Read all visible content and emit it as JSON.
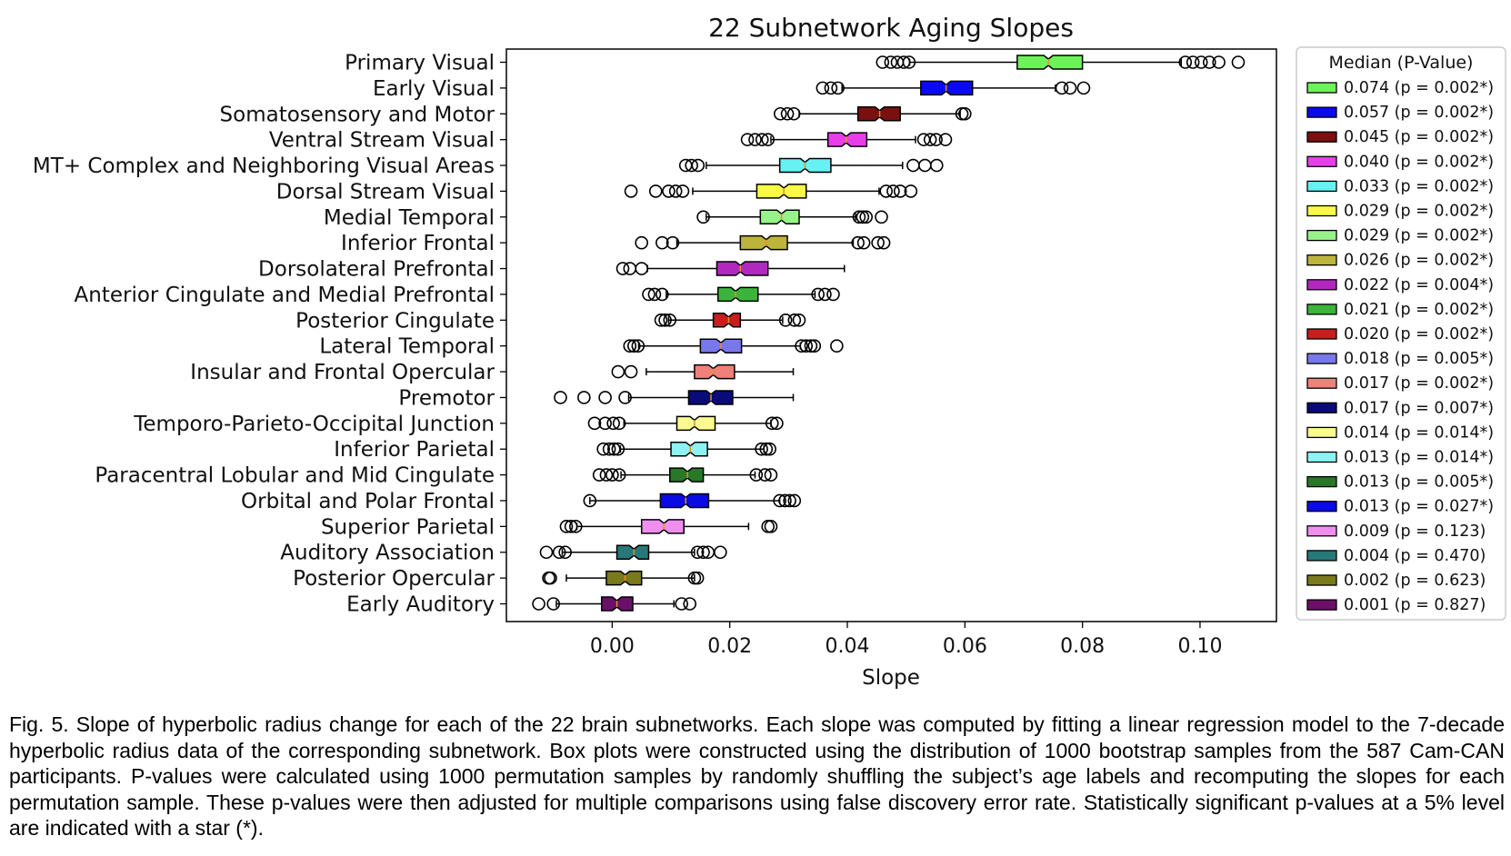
{
  "chart_data": {
    "type": "boxplot",
    "title": "22 Subnetwork Aging Slopes",
    "xlabel": "Slope",
    "ylabel": "",
    "xlim": [
      -0.018,
      0.113
    ],
    "xticks": [
      0.0,
      0.02,
      0.04,
      0.06,
      0.08,
      0.1
    ],
    "xtick_labels": [
      "0.00",
      "0.02",
      "0.04",
      "0.06",
      "0.08",
      "0.10"
    ],
    "legend_title": "Median (P-Value)",
    "legend_position": "right",
    "series": [
      {
        "name": "Primary Visual",
        "legend": "0.074 (p = 0.002*)",
        "color": "#6ef25a",
        "wmin": 0.0506,
        "q1": 0.0689,
        "med": 0.0742,
        "q3": 0.08,
        "wmax": 0.0968,
        "outliers": [
          0.046,
          0.0474,
          0.0485,
          0.0496,
          0.0505,
          0.0975,
          0.0988,
          0.1002,
          0.1016,
          0.1032,
          0.1065
        ]
      },
      {
        "name": "Early Visual",
        "legend": "0.057 (p = 0.002*)",
        "color": "#0a0af2",
        "wmin": 0.0391,
        "q1": 0.0525,
        "med": 0.0568,
        "q3": 0.0613,
        "wmax": 0.0754,
        "outliers": [
          0.0358,
          0.0372,
          0.0384,
          0.0765,
          0.0779,
          0.0802
        ]
      },
      {
        "name": "Somatosensory and Motor",
        "legend": "0.045 (p = 0.002*)",
        "color": "#7a1010",
        "wmin": 0.0318,
        "q1": 0.0418,
        "med": 0.0455,
        "q3": 0.049,
        "wmax": 0.0592,
        "outliers": [
          0.0286,
          0.0298,
          0.0309,
          0.0595,
          0.06
        ]
      },
      {
        "name": "Ventral Stream Visual",
        "legend": "0.040 (p = 0.002*)",
        "color": "#e83ee8",
        "wmin": 0.027,
        "q1": 0.0367,
        "med": 0.0398,
        "q3": 0.0433,
        "wmax": 0.0516,
        "outliers": [
          0.023,
          0.0243,
          0.0255,
          0.0265,
          0.053,
          0.0541,
          0.0551,
          0.0567
        ]
      },
      {
        "name": "MT+ Complex and Neighboring Visual Areas",
        "legend": "0.033 (p = 0.002*)",
        "color": "#66f2f2",
        "wmin": 0.016,
        "q1": 0.0285,
        "med": 0.0328,
        "q3": 0.0372,
        "wmax": 0.0494,
        "outliers": [
          0.0125,
          0.0135,
          0.0146,
          0.0512,
          0.0532,
          0.0552
        ]
      },
      {
        "name": "Dorsal Stream Visual",
        "legend": "0.029 (p = 0.002*)",
        "color": "#fafa46",
        "wmin": 0.0137,
        "q1": 0.0246,
        "med": 0.0292,
        "q3": 0.033,
        "wmax": 0.0454,
        "outliers": [
          0.0032,
          0.0074,
          0.0096,
          0.0108,
          0.012,
          0.0466,
          0.0478,
          0.049,
          0.0508
        ]
      },
      {
        "name": "Medial Temporal",
        "legend": "0.029 (p = 0.002*)",
        "color": "#98f28a",
        "wmin": 0.016,
        "q1": 0.0252,
        "med": 0.0288,
        "q3": 0.0318,
        "wmax": 0.0414,
        "outliers": [
          0.0155,
          0.042,
          0.0426,
          0.0432,
          0.0458
        ]
      },
      {
        "name": "Inferior Frontal",
        "legend": "0.026 (p = 0.002*)",
        "color": "#bdb43c",
        "wmin": 0.011,
        "q1": 0.0218,
        "med": 0.0262,
        "q3": 0.0298,
        "wmax": 0.041,
        "outliers": [
          0.005,
          0.0085,
          0.0103,
          0.0418,
          0.0428,
          0.0452,
          0.0462
        ]
      },
      {
        "name": "Dorsolateral Prefrontal",
        "legend": "0.022 (p = 0.004*)",
        "color": "#b228be",
        "wmin": 0.006,
        "q1": 0.0178,
        "med": 0.0218,
        "q3": 0.0265,
        "wmax": 0.0395,
        "outliers": [
          0.0018,
          0.003,
          0.005
        ]
      },
      {
        "name": "Anterior Cingulate and Medial Prefrontal",
        "legend": "0.021 (p = 0.002*)",
        "color": "#3cb43c",
        "wmin": 0.0092,
        "q1": 0.018,
        "med": 0.021,
        "q3": 0.0248,
        "wmax": 0.0345,
        "outliers": [
          0.0062,
          0.0072,
          0.0085,
          0.035,
          0.0362,
          0.0376
        ]
      },
      {
        "name": "Posterior Cingulate",
        "legend": "0.020 (p = 0.002*)",
        "color": "#c81e1e",
        "wmin": 0.0096,
        "q1": 0.0172,
        "med": 0.0198,
        "q3": 0.0218,
        "wmax": 0.029,
        "outliers": [
          0.0083,
          0.009,
          0.0098,
          0.0295,
          0.031,
          0.0318
        ]
      },
      {
        "name": "Lateral Temporal",
        "legend": "0.018 (p = 0.005*)",
        "color": "#7878ea",
        "wmin": 0.0045,
        "q1": 0.015,
        "med": 0.0185,
        "q3": 0.022,
        "wmax": 0.032,
        "outliers": [
          0.003,
          0.0037,
          0.0044,
          0.0322,
          0.033,
          0.0338,
          0.0344,
          0.0382
        ]
      },
      {
        "name": "Insular and Frontal Opercular",
        "legend": "0.017 (p = 0.002*)",
        "color": "#f0807a",
        "wmin": 0.0058,
        "q1": 0.014,
        "med": 0.0172,
        "q3": 0.0208,
        "wmax": 0.0308,
        "outliers": [
          0.001,
          0.0032
        ]
      },
      {
        "name": "Premotor",
        "legend": "0.017 (p = 0.007*)",
        "color": "#0a0a78",
        "wmin": 0.0028,
        "q1": 0.013,
        "med": 0.0168,
        "q3": 0.0205,
        "wmax": 0.0308,
        "outliers": [
          -0.0088,
          -0.0048,
          -0.0012,
          0.0022
        ]
      },
      {
        "name": "Temporo-Parieto-Occipital Junction",
        "legend": "0.014 (p = 0.014*)",
        "color": "#fafa8e",
        "wmin": 0.002,
        "q1": 0.011,
        "med": 0.014,
        "q3": 0.0175,
        "wmax": 0.027,
        "outliers": [
          -0.003,
          -0.0012,
          0.0002,
          0.0012,
          0.0272,
          0.028
        ]
      },
      {
        "name": "Inferior Parietal",
        "legend": "0.013 (p = 0.014*)",
        "color": "#8ef2f2",
        "wmin": 0.0014,
        "q1": 0.01,
        "med": 0.0133,
        "q3": 0.0162,
        "wmax": 0.0258,
        "outliers": [
          -0.0015,
          -0.0005,
          0.0003,
          0.001,
          0.0254,
          0.0262,
          0.0268
        ]
      },
      {
        "name": "Paracentral Lobular and Mid Cingulate",
        "legend": "0.013 (p = 0.005*)",
        "color": "#287828",
        "wmin": 0.0015,
        "q1": 0.0098,
        "med": 0.0128,
        "q3": 0.0155,
        "wmax": 0.0243,
        "outliers": [
          -0.0022,
          -0.001,
          0.0,
          0.0012,
          0.0245,
          0.026,
          0.027
        ]
      },
      {
        "name": "Orbital and Polar Frontal",
        "legend": "0.013 (p = 0.027*)",
        "color": "#0a0ae6",
        "wmin": -0.0038,
        "q1": 0.0082,
        "med": 0.0125,
        "q3": 0.0164,
        "wmax": 0.0285,
        "outliers": [
          -0.0038,
          0.0285,
          0.0294,
          0.0302,
          0.031
        ]
      },
      {
        "name": "Superior Parietal",
        "legend": "0.009 (p = 0.123)",
        "color": "#f08ef0",
        "wmin": -0.006,
        "q1": 0.005,
        "med": 0.0088,
        "q3": 0.0122,
        "wmax": 0.0232,
        "outliers": [
          -0.0078,
          -0.007,
          -0.0062,
          0.0265,
          0.027
        ]
      },
      {
        "name": "Auditory Association",
        "legend": "0.004 (p = 0.470)",
        "color": "#287878",
        "wmin": -0.0085,
        "q1": 0.0008,
        "med": 0.0037,
        "q3": 0.0062,
        "wmax": 0.014,
        "outliers": [
          -0.0112,
          -0.009,
          -0.008,
          0.0145,
          0.0155,
          0.0163,
          0.0184
        ]
      },
      {
        "name": "Posterior Opercular",
        "legend": "0.002 (p = 0.623)",
        "color": "#7a7a1c",
        "wmin": -0.0078,
        "q1": -0.001,
        "med": 0.0022,
        "q3": 0.005,
        "wmax": 0.014,
        "outliers": [
          -0.0108,
          -0.0105,
          0.014,
          0.0145
        ]
      },
      {
        "name": "Early Auditory",
        "legend": "0.001 (p = 0.827)",
        "color": "#6a106a",
        "wmin": -0.0095,
        "q1": -0.0018,
        "med": 0.0008,
        "q3": 0.0035,
        "wmax": 0.0105,
        "outliers": [
          -0.0125,
          -0.01,
          0.0118,
          0.0132
        ]
      }
    ]
  },
  "caption": "Fig. 5.   Slope of hyperbolic radius change for each of the 22 brain subnetworks. Each slope was computed by fitting a linear regression model to the 7-decade hyperbolic radius data of the corresponding subnetwork. Box plots were constructed using the distribution of 1000 bootstrap samples from the 587 Cam-CAN participants. P-values were calculated using 1000 permutation samples by randomly shuffling the subject’s age labels and recomputing the slopes for each permutation sample. These p-values were then adjusted for multiple comparisons using false discovery error rate. Statistically significant p-values at a 5% level are indicated with a star (*)."
}
